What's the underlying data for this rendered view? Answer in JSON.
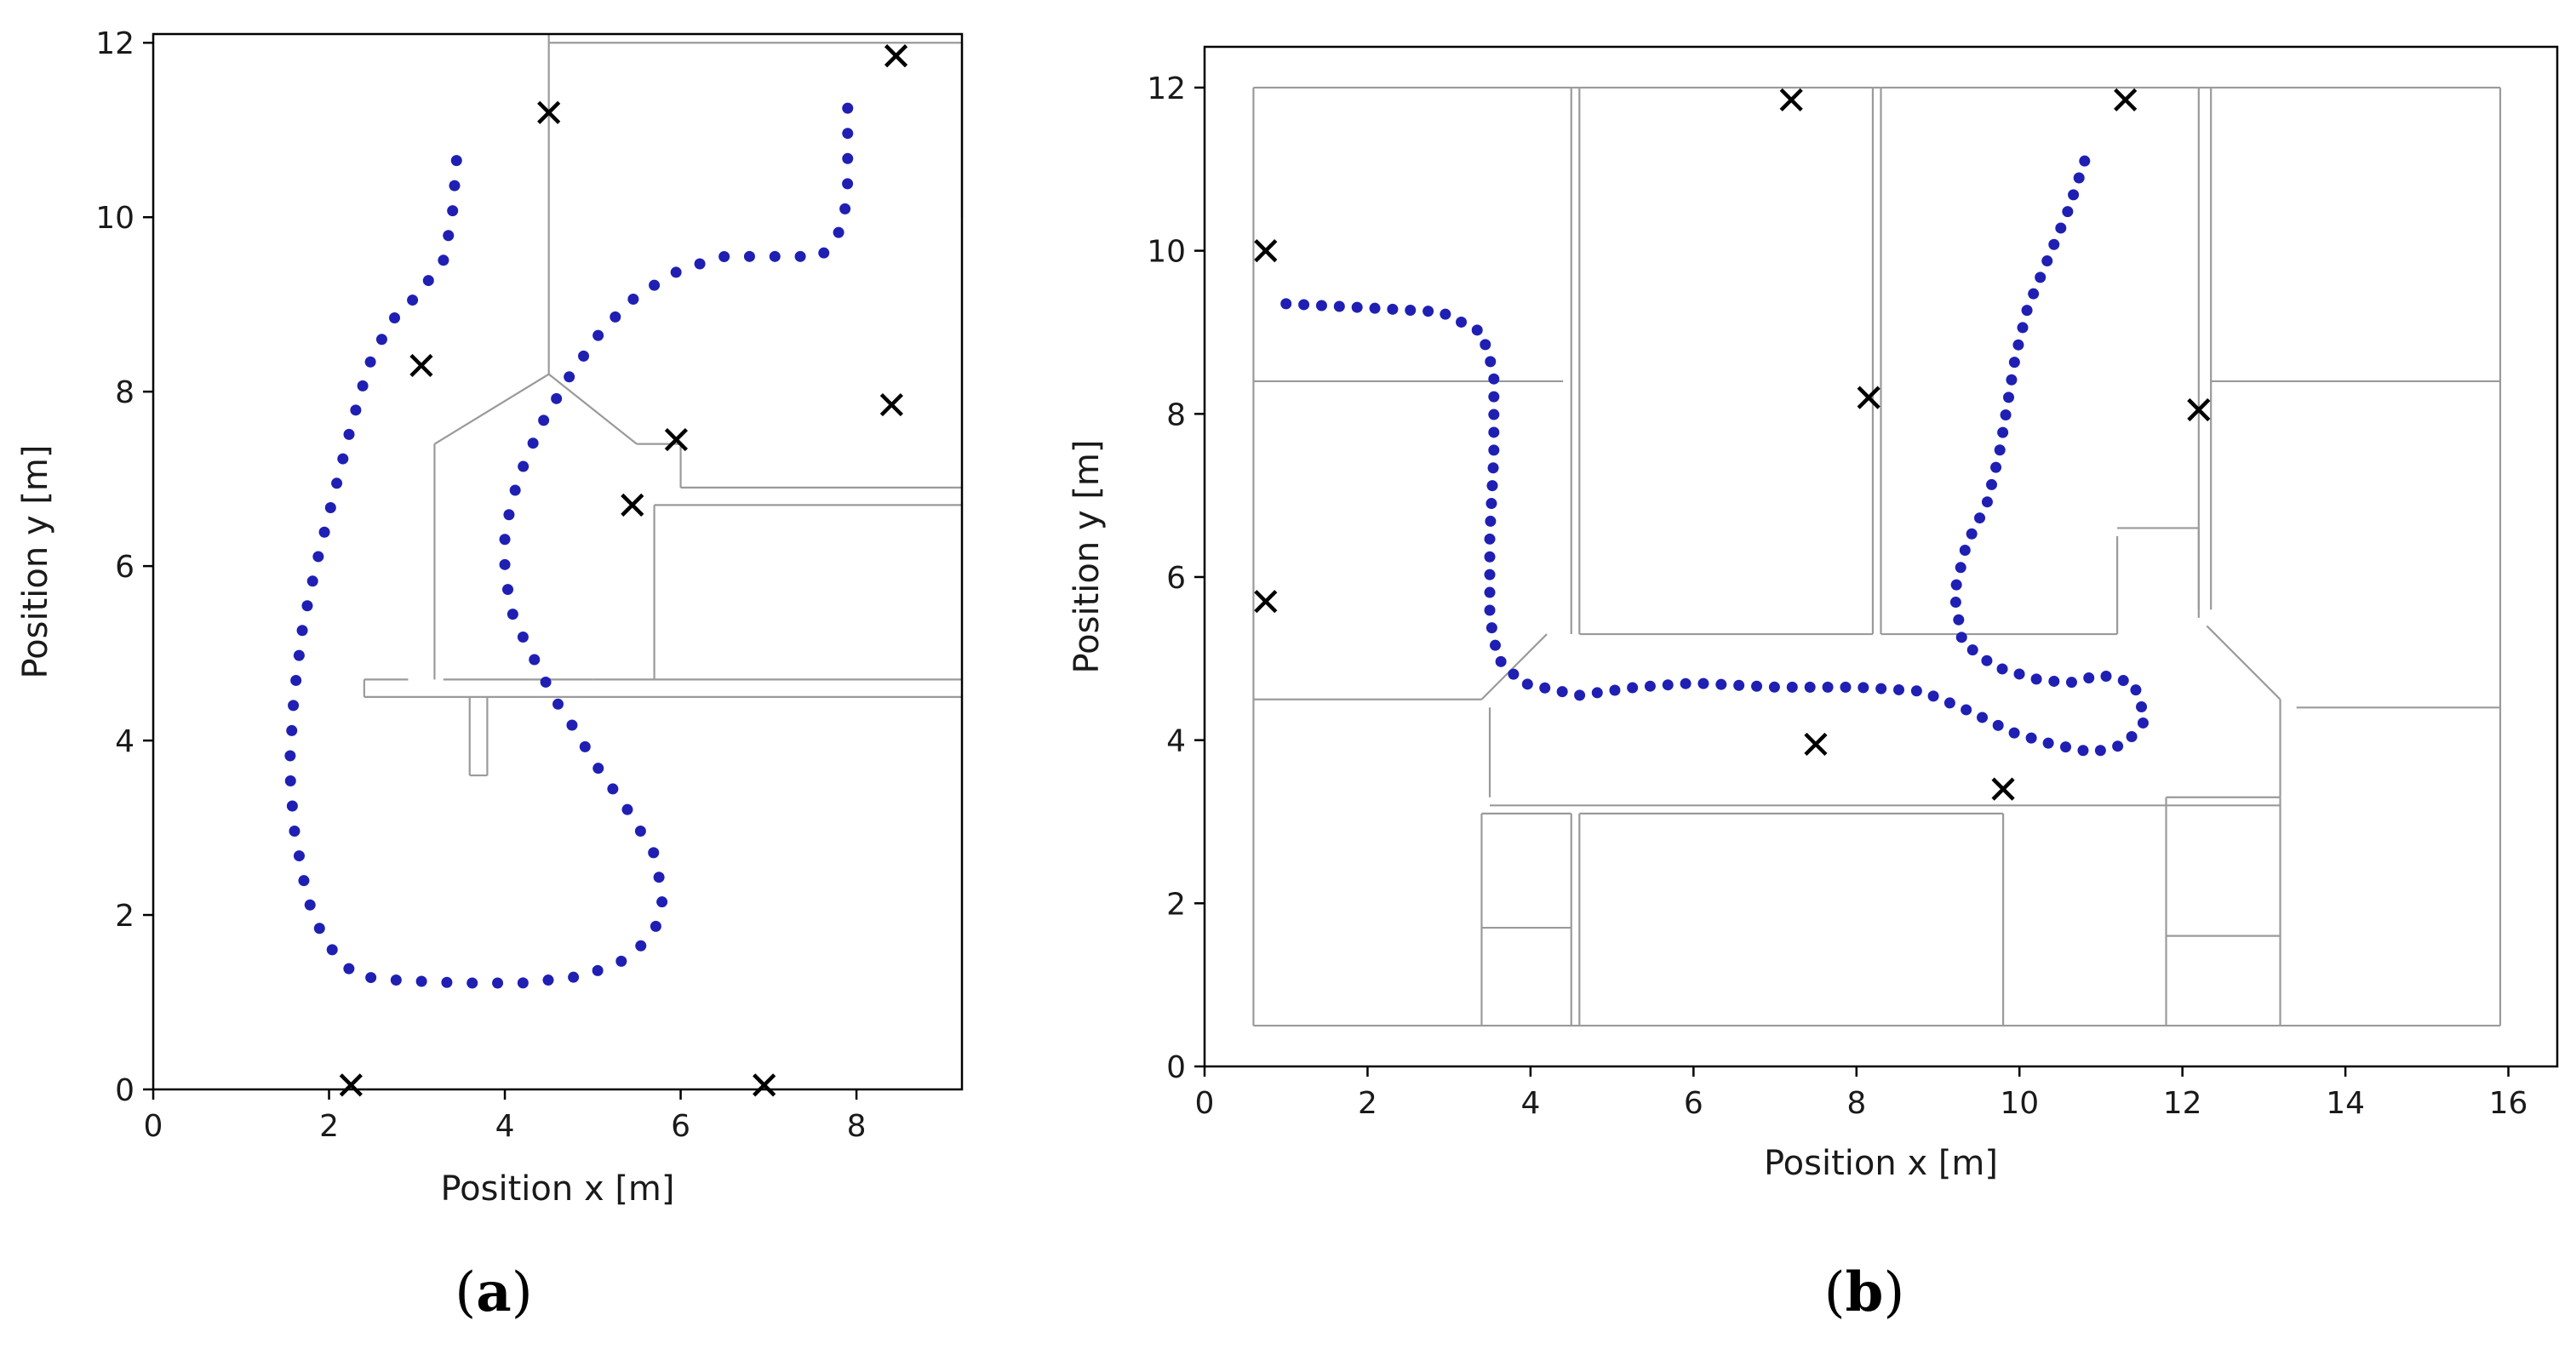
{
  "chart_data": [
    {
      "type": "scatter",
      "panel": "a",
      "caption_open": "(",
      "caption_letter": "a",
      "caption_close": ")",
      "xlabel": "Position x [m]",
      "ylabel": "Position y [m]",
      "xlim": [
        0,
        9.2
      ],
      "ylim": [
        0,
        12.1
      ],
      "xticks": [
        0,
        2,
        4,
        6,
        8
      ],
      "yticks": [
        0,
        2,
        4,
        6,
        8,
        10,
        12
      ],
      "grid": false,
      "series": [
        {
          "name": "trajectory",
          "marker": "dot",
          "color": "#1f1fb4",
          "polyline": [
            [
              3.45,
              10.65
            ],
            [
              3.4,
              10.0
            ],
            [
              3.3,
              9.5
            ],
            [
              3.0,
              9.1
            ],
            [
              2.7,
              8.8
            ],
            [
              2.45,
              8.3
            ],
            [
              2.25,
              7.6
            ],
            [
              2.05,
              6.8
            ],
            [
              1.85,
              6.0
            ],
            [
              1.7,
              5.3
            ],
            [
              1.6,
              4.5
            ],
            [
              1.55,
              3.7
            ],
            [
              1.6,
              3.0
            ],
            [
              1.75,
              2.2
            ],
            [
              1.95,
              1.7
            ],
            [
              2.3,
              1.3
            ],
            [
              2.8,
              1.25
            ],
            [
              3.5,
              1.22
            ],
            [
              4.2,
              1.22
            ],
            [
              4.9,
              1.3
            ],
            [
              5.4,
              1.5
            ],
            [
              5.7,
              1.8
            ],
            [
              5.8,
              2.2
            ],
            [
              5.7,
              2.7
            ],
            [
              5.4,
              3.2
            ],
            [
              5.05,
              3.7
            ],
            [
              4.75,
              4.2
            ],
            [
              4.55,
              4.5
            ],
            [
              4.35,
              4.9
            ],
            [
              4.1,
              5.4
            ],
            [
              4.0,
              5.9
            ],
            [
              4.0,
              6.4
            ],
            [
              4.15,
              7.0
            ],
            [
              4.4,
              7.6
            ],
            [
              4.75,
              8.2
            ],
            [
              5.1,
              8.7
            ],
            [
              5.5,
              9.1
            ],
            [
              6.0,
              9.4
            ],
            [
              6.5,
              9.55
            ],
            [
              7.1,
              9.55
            ],
            [
              7.6,
              9.55
            ],
            [
              7.85,
              9.9
            ],
            [
              7.9,
              10.4
            ],
            [
              7.9,
              11.0
            ],
            [
              7.9,
              11.25
            ]
          ],
          "count": 90
        },
        {
          "name": "anchors",
          "marker": "x",
          "color": "#000000",
          "points": [
            [
              4.5,
              11.2
            ],
            [
              8.45,
              11.85
            ],
            [
              3.05,
              8.3
            ],
            [
              8.4,
              7.85
            ],
            [
              5.95,
              7.45
            ],
            [
              5.45,
              6.7
            ],
            [
              2.25,
              0.05
            ],
            [
              6.95,
              0.05
            ]
          ]
        }
      ],
      "floor_plan": [
        [
          [
            4.5,
            12.1
          ],
          [
            4.5,
            8.2
          ]
        ],
        [
          [
            4.5,
            12.0
          ],
          [
            9.2,
            12.0
          ]
        ],
        [
          [
            9.2,
            12.0
          ],
          [
            9.2,
            10.0
          ]
        ],
        [
          [
            4.5,
            8.2
          ],
          [
            3.2,
            7.4
          ]
        ],
        [
          [
            3.2,
            7.4
          ],
          [
            3.2,
            4.7
          ]
        ],
        [
          [
            4.5,
            8.2
          ],
          [
            5.5,
            7.4
          ]
        ],
        [
          [
            5.5,
            7.4
          ],
          [
            6.0,
            7.4
          ]
        ],
        [
          [
            6.0,
            7.4
          ],
          [
            6.0,
            6.9
          ]
        ],
        [
          [
            6.0,
            6.9
          ],
          [
            9.2,
            6.9
          ]
        ],
        [
          [
            5.7,
            6.7
          ],
          [
            9.2,
            6.7
          ]
        ],
        [
          [
            5.7,
            6.7
          ],
          [
            5.7,
            4.7
          ]
        ],
        [
          [
            2.4,
            4.7
          ],
          [
            2.9,
            4.7
          ]
        ],
        [
          [
            3.3,
            4.7
          ],
          [
            5.0,
            4.7
          ]
        ],
        [
          [
            5.0,
            4.7
          ],
          [
            9.2,
            4.7
          ]
        ],
        [
          [
            2.4,
            4.5
          ],
          [
            9.2,
            4.5
          ]
        ],
        [
          [
            2.4,
            4.7
          ],
          [
            2.4,
            4.5
          ]
        ],
        [
          [
            3.6,
            4.5
          ],
          [
            3.6,
            3.6
          ]
        ],
        [
          [
            3.8,
            4.5
          ],
          [
            3.8,
            3.6
          ]
        ],
        [
          [
            3.6,
            3.6
          ],
          [
            3.8,
            3.6
          ]
        ]
      ]
    },
    {
      "type": "scatter",
      "panel": "b",
      "caption_open": "(",
      "caption_letter": "b",
      "caption_close": ")",
      "xlabel": "Position x [m]",
      "ylabel": "Position y [m]",
      "xlim": [
        0,
        16.6
      ],
      "ylim": [
        0,
        12.5
      ],
      "xticks": [
        0,
        2,
        4,
        6,
        8,
        10,
        12,
        14,
        16
      ],
      "yticks": [
        0,
        2,
        4,
        6,
        8,
        10,
        12
      ],
      "grid": false,
      "series": [
        {
          "name": "trajectory",
          "marker": "dot",
          "color": "#1f1fb4",
          "polyline": [
            [
              1.0,
              9.35
            ],
            [
              2.0,
              9.3
            ],
            [
              2.9,
              9.25
            ],
            [
              3.4,
              9.0
            ],
            [
              3.55,
              8.5
            ],
            [
              3.55,
              7.5
            ],
            [
              3.5,
              6.5
            ],
            [
              3.5,
              5.5
            ],
            [
              3.6,
              5.0
            ],
            [
              3.9,
              4.7
            ],
            [
              4.6,
              4.55
            ],
            [
              5.3,
              4.65
            ],
            [
              6.0,
              4.7
            ],
            [
              7.0,
              4.65
            ],
            [
              8.0,
              4.65
            ],
            [
              8.8,
              4.6
            ],
            [
              9.4,
              4.35
            ],
            [
              9.9,
              4.1
            ],
            [
              10.4,
              3.95
            ],
            [
              10.9,
              3.85
            ],
            [
              11.3,
              3.95
            ],
            [
              11.55,
              4.25
            ],
            [
              11.4,
              4.7
            ],
            [
              11.0,
              4.8
            ],
            [
              10.6,
              4.7
            ],
            [
              10.2,
              4.75
            ],
            [
              9.7,
              4.9
            ],
            [
              9.3,
              5.2
            ],
            [
              9.2,
              5.8
            ],
            [
              9.35,
              6.4
            ],
            [
              9.6,
              6.9
            ],
            [
              9.75,
              7.5
            ],
            [
              9.85,
              8.1
            ],
            [
              9.95,
              8.7
            ],
            [
              10.1,
              9.3
            ],
            [
              10.35,
              9.9
            ],
            [
              10.6,
              10.5
            ],
            [
              10.8,
              11.1
            ]
          ],
          "count": 110
        },
        {
          "name": "anchors",
          "marker": "x",
          "color": "#000000",
          "points": [
            [
              7.2,
              11.85
            ],
            [
              11.3,
              11.85
            ],
            [
              0.75,
              10.0
            ],
            [
              8.15,
              8.2
            ],
            [
              12.2,
              8.05
            ],
            [
              0.75,
              5.7
            ],
            [
              7.5,
              3.95
            ],
            [
              9.8,
              3.4
            ]
          ]
        }
      ],
      "floor_plan": [
        [
          [
            0.6,
            12.0
          ],
          [
            15.9,
            12.0
          ]
        ],
        [
          [
            0.6,
            12.0
          ],
          [
            0.6,
            0.5
          ]
        ],
        [
          [
            15.9,
            12.0
          ],
          [
            15.9,
            0.5
          ]
        ],
        [
          [
            0.6,
            0.5
          ],
          [
            15.9,
            0.5
          ]
        ],
        [
          [
            0.6,
            8.4
          ],
          [
            4.4,
            8.4
          ]
        ],
        [
          [
            4.5,
            12.0
          ],
          [
            4.5,
            5.3
          ]
        ],
        [
          [
            4.6,
            12.0
          ],
          [
            4.6,
            5.3
          ]
        ],
        [
          [
            4.6,
            5.3
          ],
          [
            8.2,
            5.3
          ]
        ],
        [
          [
            8.2,
            12.0
          ],
          [
            8.2,
            5.3
          ]
        ],
        [
          [
            8.3,
            12.0
          ],
          [
            8.3,
            5.3
          ]
        ],
        [
          [
            8.3,
            5.3
          ],
          [
            11.2,
            5.3
          ]
        ],
        [
          [
            11.2,
            5.3
          ],
          [
            11.2,
            6.5
          ]
        ],
        [
          [
            11.2,
            6.6
          ],
          [
            12.2,
            6.6
          ]
        ],
        [
          [
            12.2,
            6.6
          ],
          [
            12.2,
            5.5
          ]
        ],
        [
          [
            12.2,
            12.0
          ],
          [
            12.2,
            5.6
          ]
        ],
        [
          [
            12.35,
            12.0
          ],
          [
            12.35,
            5.6
          ]
        ],
        [
          [
            12.35,
            8.4
          ],
          [
            15.9,
            8.4
          ]
        ],
        [
          [
            12.3,
            5.4
          ],
          [
            13.2,
            4.5
          ]
        ],
        [
          [
            13.2,
            4.5
          ],
          [
            13.2,
            3.3
          ]
        ],
        [
          [
            13.4,
            4.4
          ],
          [
            15.9,
            4.4
          ]
        ],
        [
          [
            0.6,
            4.5
          ],
          [
            3.4,
            4.5
          ]
        ],
        [
          [
            3.4,
            4.5
          ],
          [
            4.2,
            5.3
          ]
        ],
        [
          [
            3.5,
            4.4
          ],
          [
            3.5,
            3.3
          ]
        ],
        [
          [
            3.5,
            3.2
          ],
          [
            13.2,
            3.2
          ]
        ],
        [
          [
            3.4,
            3.1
          ],
          [
            3.4,
            0.5
          ]
        ],
        [
          [
            3.4,
            3.1
          ],
          [
            4.5,
            3.1
          ]
        ],
        [
          [
            4.5,
            3.1
          ],
          [
            4.5,
            0.5
          ]
        ],
        [
          [
            4.6,
            3.1
          ],
          [
            4.6,
            0.5
          ]
        ],
        [
          [
            3.4,
            1.7
          ],
          [
            4.5,
            1.7
          ]
        ],
        [
          [
            4.6,
            3.1
          ],
          [
            9.8,
            3.1
          ]
        ],
        [
          [
            9.8,
            3.1
          ],
          [
            9.8,
            0.5
          ]
        ],
        [
          [
            11.8,
            3.3
          ],
          [
            11.8,
            0.5
          ]
        ],
        [
          [
            11.8,
            3.3
          ],
          [
            13.2,
            3.3
          ]
        ],
        [
          [
            11.8,
            1.6
          ],
          [
            13.2,
            1.6
          ]
        ],
        [
          [
            13.2,
            3.3
          ],
          [
            13.2,
            0.5
          ]
        ]
      ]
    }
  ]
}
